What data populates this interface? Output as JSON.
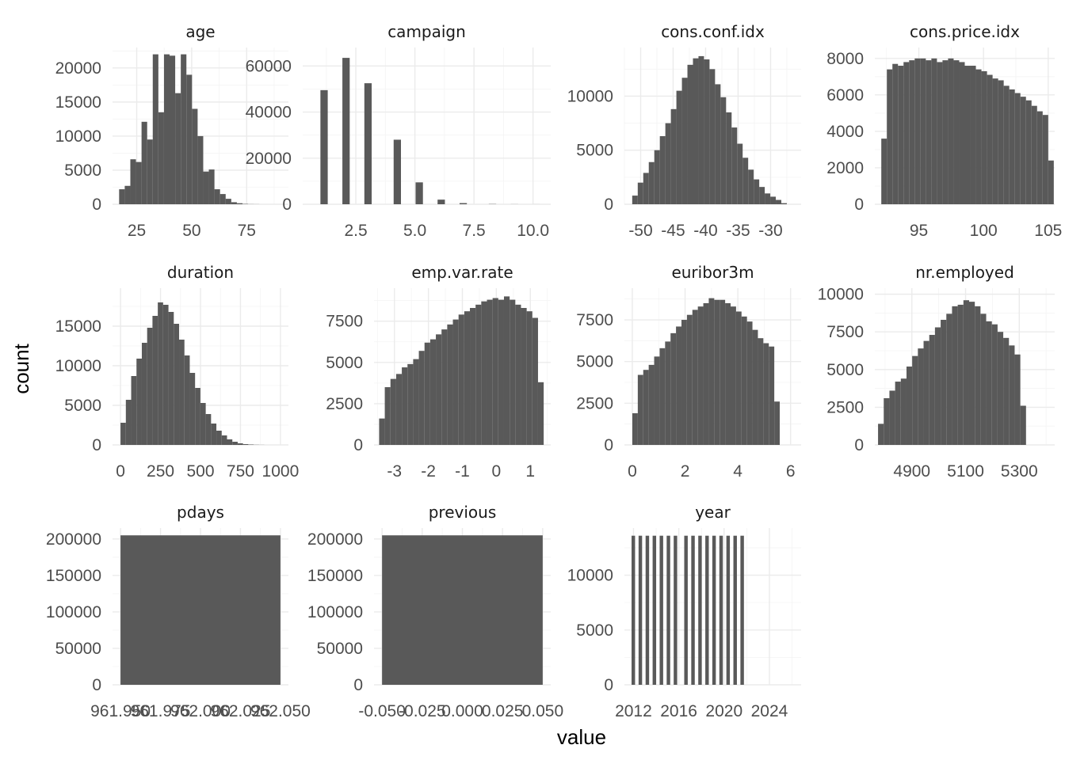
{
  "chart_data": {
    "type": "histogram-facets",
    "xlabel": "value",
    "ylabel": "count",
    "bar_color": "#595959",
    "grid_color": "#ebebeb",
    "facets": [
      {
        "title": "age",
        "xlim": [
          14,
          94
        ],
        "ylim": [
          0,
          23000
        ],
        "x_ticks": [
          25,
          50,
          75
        ],
        "x_tick_labels": [
          "25",
          "50",
          "75"
        ],
        "y_ticks": [
          0,
          5000,
          10000,
          15000,
          20000
        ],
        "y_tick_labels": [
          "0",
          "5000",
          "10000",
          "15000",
          "20000"
        ],
        "bins": {
          "start": 17.0,
          "width": 2.55,
          "counts": [
            2200,
            2700,
            6600,
            6200,
            12100,
            9500,
            22000,
            13500,
            22000,
            21800,
            16300,
            22000,
            19000,
            14000,
            10000,
            4800,
            5100,
            2200,
            1500,
            800,
            300,
            150,
            50,
            20,
            10,
            0,
            0,
            0,
            0,
            0
          ]
        }
      },
      {
        "title": "campaign",
        "xlim": [
          0.25,
          10.75
        ],
        "ylim": [
          0,
          68000
        ],
        "x_ticks": [
          2.5,
          5.0,
          7.5,
          10.0
        ],
        "x_tick_labels": [
          "2.5",
          "5.0",
          "7.5",
          "10.0"
        ],
        "y_ticks": [
          0,
          20000,
          40000,
          60000
        ],
        "y_tick_labels": [
          "0",
          "20000",
          "40000",
          "60000"
        ],
        "bins": {
          "start": 1.0,
          "width": 0.31,
          "counts": [
            49500,
            0,
            0,
            63500,
            0,
            0,
            52500,
            0,
            0,
            0,
            28000,
            0,
            0,
            9500,
            0,
            0,
            2000,
            0,
            0,
            500,
            0,
            0,
            0,
            100,
            0,
            0,
            30,
            0,
            0,
            10
          ]
        }
      },
      {
        "title": "cons.conf.idx",
        "xlim": [
          -52.5,
          -25.3
        ],
        "ylim": [
          0,
          14500
        ],
        "x_ticks": [
          -50,
          -45,
          -40,
          -35,
          -30
        ],
        "x_tick_labels": [
          "-50",
          "-45",
          "-40",
          "-35",
          "-30"
        ],
        "y_ticks": [
          0,
          5000,
          10000
        ],
        "y_tick_labels": [
          "0",
          "5000",
          "10000"
        ],
        "bins": {
          "start": -51.3,
          "width": 0.85,
          "counts": [
            800,
            2000,
            2900,
            3900,
            5000,
            6300,
            7500,
            8800,
            10500,
            11700,
            12900,
            13500,
            13700,
            13400,
            12500,
            11100,
            9900,
            8500,
            7100,
            5600,
            4300,
            3200,
            2300,
            1600,
            1000,
            700,
            400,
            100,
            0,
            0
          ]
        }
      },
      {
        "title": "cons.price.idx",
        "xlim": [
          91.6,
          105.5
        ],
        "ylim": [
          0,
          8600
        ],
        "x_ticks": [
          95,
          100,
          105
        ],
        "x_tick_labels": [
          "95",
          "100",
          "105"
        ],
        "y_ticks": [
          0,
          2000,
          4000,
          6000,
          8000
        ],
        "y_tick_labels": [
          "0",
          "2000",
          "4000",
          "6000",
          "8000"
        ],
        "bins": {
          "start": 92.1,
          "width": 0.43,
          "counts": [
            3600,
            7400,
            7700,
            7600,
            7800,
            7900,
            8000,
            8000,
            7900,
            8000,
            7800,
            7900,
            8000,
            7900,
            7800,
            7600,
            7600,
            7400,
            7300,
            7100,
            6900,
            6800,
            6500,
            6300,
            6100,
            5900,
            5700,
            5400,
            5100,
            4900,
            2400
          ]
        }
      },
      {
        "title": "duration",
        "xlim": [
          -50,
          1050
        ],
        "ylim": [
          0,
          19800
        ],
        "x_ticks": [
          0,
          250,
          500,
          750,
          1000
        ],
        "x_tick_labels": [
          "0",
          "250",
          "500",
          "750",
          "1000"
        ],
        "y_ticks": [
          0,
          5000,
          10000,
          15000
        ],
        "y_tick_labels": [
          "0",
          "5000",
          "10000",
          "15000"
        ],
        "bins": {
          "start": 0,
          "width": 33.3,
          "counts": [
            2800,
            5700,
            8700,
            10900,
            12900,
            14800,
            16300,
            18000,
            17700,
            16800,
            15300,
            13300,
            11300,
            9100,
            7200,
            5300,
            3900,
            2700,
            1800,
            1200,
            700,
            400,
            200,
            100,
            50,
            20,
            10,
            0,
            0,
            0
          ]
        }
      },
      {
        "title": "emp.var.rate",
        "xlim": [
          -3.6,
          1.6
        ],
        "ylim": [
          0,
          9500
        ],
        "x_ticks": [
          -3,
          -2,
          -1,
          0,
          1
        ],
        "x_tick_labels": [
          "-3",
          "-2",
          "-1",
          "0",
          "1"
        ],
        "y_ticks": [
          0,
          2500,
          5000,
          7500
        ],
        "y_tick_labels": [
          "0",
          "2500",
          "5000",
          "7500"
        ],
        "bins": {
          "start": -3.45,
          "width": 0.167,
          "counts": [
            1600,
            3500,
            4000,
            4300,
            4700,
            4900,
            5200,
            5700,
            6200,
            6400,
            6700,
            7000,
            7300,
            7600,
            7900,
            8100,
            8300,
            8500,
            8700,
            8800,
            8900,
            8800,
            9000,
            8800,
            8500,
            8300,
            8100,
            7700,
            3800
          ]
        }
      },
      {
        "title": "euribor3m",
        "xlim": [
          -0.3,
          6.4
        ],
        "ylim": [
          0,
          9400
        ],
        "x_ticks": [
          0,
          2,
          4,
          6
        ],
        "x_tick_labels": [
          "0",
          "2",
          "4",
          "6"
        ],
        "y_ticks": [
          0,
          2500,
          5000,
          7500
        ],
        "y_tick_labels": [
          "0",
          "2500",
          "5000",
          "7500"
        ],
        "bins": {
          "start": 0.0,
          "width": 0.207,
          "counts": [
            1900,
            4200,
            4500,
            4800,
            5300,
            5800,
            6200,
            6700,
            7100,
            7500,
            7800,
            8100,
            8300,
            8500,
            8800,
            8700,
            8700,
            8500,
            8300,
            8000,
            7700,
            7400,
            6900,
            6400,
            6100,
            5900,
            2600
          ]
        }
      },
      {
        "title": "nr.employed",
        "xlim": [
          4762,
          5432
        ],
        "ylim": [
          0,
          10400
        ],
        "x_ticks": [
          4900,
          5100,
          5300
        ],
        "x_tick_labels": [
          "4900",
          "5100",
          "5300"
        ],
        "y_ticks": [
          0,
          2500,
          5000,
          7500,
          10000
        ],
        "y_tick_labels": [
          "0",
          "2500",
          "5000",
          "7500",
          "10000"
        ],
        "bins": {
          "start": 4774,
          "width": 21.2,
          "counts": [
            1400,
            3100,
            3600,
            4200,
            4400,
            5200,
            5900,
            6400,
            6900,
            7300,
            7800,
            8300,
            8700,
            9200,
            9300,
            9600,
            9500,
            9200,
            8700,
            8200,
            8000,
            7500,
            7100,
            6600,
            6000,
            2600
          ]
        }
      },
      {
        "title": "pdays",
        "xlim": [
          961.945,
          962.055
        ],
        "ylim": [
          0,
          215000
        ],
        "x_ticks": [
          961.95,
          961.975,
          962.0,
          962.025,
          962.05
        ],
        "x_tick_labels": [
          "961.950",
          "961.975",
          "962.000",
          "962.025",
          "962.050"
        ],
        "y_ticks": [
          0,
          50000,
          100000,
          150000,
          200000
        ],
        "y_tick_labels": [
          "0",
          "50000",
          "100000",
          "150000",
          "200000"
        ],
        "bins": {
          "start": 961.95,
          "width": 0.1,
          "counts": [
            205000
          ]
        }
      },
      {
        "title": "previous",
        "xlim": [
          -0.055,
          0.055
        ],
        "ylim": [
          0,
          215000
        ],
        "x_ticks": [
          -0.05,
          -0.025,
          0.0,
          0.025,
          0.05
        ],
        "x_tick_labels": [
          "-0.050",
          "-0.025",
          "0.000",
          "0.025",
          "0.050"
        ],
        "y_ticks": [
          0,
          50000,
          100000,
          150000,
          200000
        ],
        "y_tick_labels": [
          "0",
          "50000",
          "100000",
          "150000",
          "200000"
        ],
        "bins": {
          "start": -0.05,
          "width": 0.1,
          "counts": [
            205000
          ]
        }
      },
      {
        "title": "year",
        "xlim": [
          2011.2,
          2026.8
        ],
        "ylim": [
          0,
          14300
        ],
        "x_ticks": [
          2012,
          2016,
          2020,
          2024
        ],
        "x_tick_labels": [
          "2012",
          "2016",
          "2020",
          "2024"
        ],
        "y_ticks": [
          0,
          5000,
          10000
        ],
        "y_tick_labels": [
          "0",
          "5000",
          "10000"
        ],
        "bins": {
          "start": 2011.83,
          "width": 0.31,
          "counts": [
            13600,
            0,
            13600,
            0,
            13600,
            0,
            13600,
            0,
            13600,
            0,
            13600,
            0,
            13600,
            0,
            0,
            13600,
            0,
            13600,
            0,
            13600,
            0,
            13600,
            0,
            13600,
            0,
            13600,
            0,
            13600,
            0,
            13600,
            0,
            13600
          ]
        }
      }
    ]
  }
}
